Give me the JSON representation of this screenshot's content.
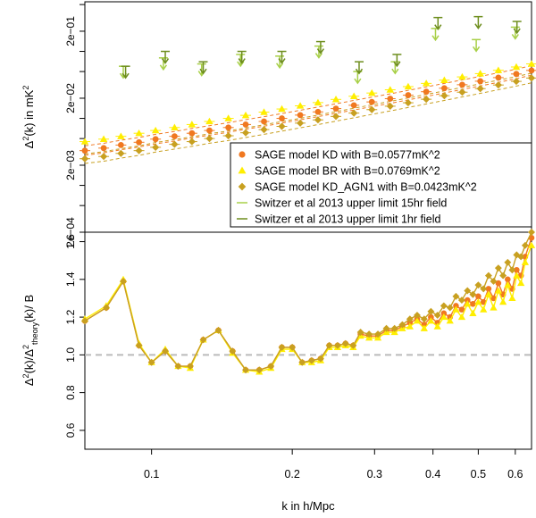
{
  "chart_data": [
    {
      "type": "scatter",
      "panel": "top",
      "ylabel": "Δ²(k) in mK²",
      "log_y": true,
      "log_x": true,
      "xlim": [
        0.072,
        0.65
      ],
      "ylim": [
        0.0002,
        0.55
      ],
      "y_ticks": [
        {
          "value": 0.0002,
          "label": "2e−04"
        },
        {
          "value": 0.002,
          "label": "2e−03"
        },
        {
          "value": 0.02,
          "label": "2e−02"
        },
        {
          "value": 0.2,
          "label": "2e−01"
        }
      ],
      "y_minor_ticks": [
        0.0005,
        0.001,
        0.005,
        0.01,
        0.05,
        0.1,
        0.5
      ],
      "series": [
        {
          "name": "SAGE model  KD with B=0.0577mK^2",
          "color": "#f07820",
          "marker": "circle",
          "x": [
            0.072,
            0.079,
            0.086,
            0.094,
            0.102,
            0.112,
            0.122,
            0.133,
            0.146,
            0.159,
            0.174,
            0.19,
            0.208,
            0.227,
            0.248,
            0.271,
            0.296,
            0.324,
            0.354,
            0.387,
            0.423,
            0.462,
            0.505,
            0.552,
            0.603,
            0.65
          ],
          "y": [
            0.0033,
            0.0036,
            0.004,
            0.0044,
            0.0049,
            0.0054,
            0.006,
            0.0066,
            0.0073,
            0.0081,
            0.009,
            0.01,
            0.0112,
            0.0125,
            0.014,
            0.0157,
            0.0176,
            0.0197,
            0.0222,
            0.025,
            0.0282,
            0.0318,
            0.0359,
            0.0406,
            0.046,
            0.052
          ]
        },
        {
          "name": "SAGE model  BR with B=0.0769mK^2",
          "color": "#ffee00",
          "marker": "triangle",
          "x": [
            0.072,
            0.079,
            0.086,
            0.094,
            0.102,
            0.112,
            0.122,
            0.133,
            0.146,
            0.159,
            0.174,
            0.19,
            0.208,
            0.227,
            0.248,
            0.271,
            0.296,
            0.324,
            0.354,
            0.387,
            0.423,
            0.462,
            0.505,
            0.552,
            0.603,
            0.65
          ],
          "y": [
            0.0045,
            0.0049,
            0.0054,
            0.006,
            0.0066,
            0.0073,
            0.0081,
            0.009,
            0.01,
            0.0111,
            0.0124,
            0.0138,
            0.0154,
            0.0172,
            0.0192,
            0.0214,
            0.0239,
            0.0267,
            0.0298,
            0.0333,
            0.0372,
            0.0416,
            0.0466,
            0.0522,
            0.0585,
            0.065
          ]
        },
        {
          "name": "SAGE model  KD_AGN1 with B=0.0423mK^2",
          "color": "#c8a020",
          "marker": "diamond",
          "x": [
            0.072,
            0.079,
            0.086,
            0.094,
            0.102,
            0.112,
            0.122,
            0.133,
            0.146,
            0.159,
            0.174,
            0.19,
            0.208,
            0.227,
            0.248,
            0.271,
            0.296,
            0.324,
            0.354,
            0.387,
            0.423,
            0.462,
            0.505,
            0.552,
            0.603,
            0.65
          ],
          "y": [
            0.0025,
            0.0027,
            0.003,
            0.0033,
            0.0037,
            0.0041,
            0.0045,
            0.005,
            0.0055,
            0.0061,
            0.0068,
            0.0076,
            0.0085,
            0.0095,
            0.0107,
            0.012,
            0.0135,
            0.0152,
            0.0171,
            0.0193,
            0.0218,
            0.0246,
            0.0278,
            0.0315,
            0.0357,
            0.04
          ]
        },
        {
          "name": "Switzer et al 2013 upper limit 15hr field",
          "color": "#a8d048",
          "marker": "upper-limit",
          "x": [
            0.087,
            0.106,
            0.128,
            0.155,
            0.188,
            0.228,
            0.276,
            0.332,
            0.405,
            0.495,
            0.6
          ],
          "y": [
            0.06,
            0.08,
            0.065,
            0.09,
            0.085,
            0.12,
            0.05,
            0.07,
            0.22,
            0.15,
            0.23
          ]
        },
        {
          "name": "Switzer et al 2013 upper limit 1hr field",
          "color": "#6e8e1e",
          "marker": "upper-limit",
          "x": [
            0.088,
            0.107,
            0.129,
            0.156,
            0.19,
            0.23,
            0.278,
            0.335,
            0.41,
            0.5,
            0.605
          ],
          "y": [
            0.06,
            0.1,
            0.07,
            0.1,
            0.1,
            0.14,
            0.07,
            0.09,
            0.32,
            0.33,
            0.28
          ]
        }
      ],
      "legend": "bottom-right"
    },
    {
      "type": "line",
      "panel": "bottom",
      "xlabel": "k in h/Mpc",
      "ylabel": "Δ²(k)/Δ²theory(k)/ B",
      "log_x": true,
      "xlim": [
        0.072,
        0.65
      ],
      "ylim": [
        0.5,
        1.65
      ],
      "x_ticks": [
        0.1,
        0.2,
        0.3,
        0.4,
        0.5,
        0.6
      ],
      "y_ticks": [
        0.6,
        0.8,
        1.0,
        1.2,
        1.4,
        1.6
      ],
      "reference_line": 1.0,
      "x": [
        0.072,
        0.08,
        0.087,
        0.094,
        0.1,
        0.107,
        0.114,
        0.121,
        0.129,
        0.139,
        0.149,
        0.159,
        0.17,
        0.18,
        0.19,
        0.2,
        0.21,
        0.22,
        0.23,
        0.24,
        0.25,
        0.26,
        0.27,
        0.28,
        0.292,
        0.305,
        0.318,
        0.331,
        0.344,
        0.357,
        0.37,
        0.383,
        0.396,
        0.409,
        0.422,
        0.435,
        0.448,
        0.461,
        0.474,
        0.487,
        0.5,
        0.513,
        0.526,
        0.539,
        0.552,
        0.565,
        0.578,
        0.591,
        0.604,
        0.617,
        0.63,
        0.65
      ],
      "series": [
        {
          "name": "SAGE model  KD with B=0.0577mK^2",
          "color": "#f07820",
          "marker": "circle",
          "values": [
            1.18,
            1.25,
            1.39,
            1.05,
            0.96,
            1.02,
            0.94,
            0.94,
            1.08,
            1.13,
            1.02,
            0.92,
            0.92,
            0.94,
            1.04,
            1.04,
            0.96,
            0.97,
            0.98,
            1.05,
            1.05,
            1.06,
            1.05,
            1.11,
            1.1,
            1.1,
            1.13,
            1.13,
            1.15,
            1.17,
            1.19,
            1.16,
            1.2,
            1.17,
            1.22,
            1.2,
            1.26,
            1.24,
            1.29,
            1.27,
            1.31,
            1.28,
            1.35,
            1.3,
            1.38,
            1.32,
            1.4,
            1.35,
            1.45,
            1.42,
            1.52,
            1.62
          ]
        },
        {
          "name": "SAGE model  BR with B=0.0769mK^2",
          "color": "#ffee00",
          "marker": "triangle",
          "values": [
            1.19,
            1.26,
            1.4,
            1.06,
            0.96,
            1.03,
            0.94,
            0.93,
            1.08,
            1.13,
            1.01,
            0.92,
            0.91,
            0.93,
            1.03,
            1.03,
            0.96,
            0.96,
            0.97,
            1.04,
            1.04,
            1.05,
            1.04,
            1.1,
            1.09,
            1.09,
            1.12,
            1.12,
            1.14,
            1.15,
            1.18,
            1.14,
            1.18,
            1.15,
            1.2,
            1.18,
            1.24,
            1.2,
            1.27,
            1.22,
            1.28,
            1.24,
            1.32,
            1.25,
            1.34,
            1.28,
            1.37,
            1.3,
            1.42,
            1.38,
            1.49,
            1.58
          ]
        },
        {
          "name": "SAGE model  KD_AGN1 with B=0.0423mK^2",
          "color": "#c8a020",
          "marker": "diamond",
          "values": [
            1.18,
            1.25,
            1.39,
            1.05,
            0.96,
            1.02,
            0.94,
            0.94,
            1.08,
            1.13,
            1.02,
            0.92,
            0.92,
            0.94,
            1.04,
            1.04,
            0.96,
            0.97,
            0.98,
            1.05,
            1.05,
            1.06,
            1.05,
            1.12,
            1.11,
            1.11,
            1.14,
            1.14,
            1.16,
            1.19,
            1.21,
            1.19,
            1.23,
            1.21,
            1.26,
            1.25,
            1.31,
            1.29,
            1.34,
            1.32,
            1.37,
            1.35,
            1.42,
            1.39,
            1.46,
            1.42,
            1.49,
            1.45,
            1.53,
            1.52,
            1.58,
            1.65
          ]
        }
      ]
    }
  ],
  "axis_labels": {
    "top_y": "Δ²(k) in mK²",
    "bottom_y": "Δ²(k)/Δ²theory(k)/ B",
    "x": "k in h/Mpc"
  },
  "legend_items": [
    "SAGE model  KD with B=0.0577mK^2",
    "SAGE model  BR with B=0.0769mK^2",
    "SAGE model  KD_AGN1 with B=0.0423mK^2",
    "Switzer et al 2013 upper limit 15hr field",
    "Switzer et al 2013 upper limit 1hr field"
  ]
}
